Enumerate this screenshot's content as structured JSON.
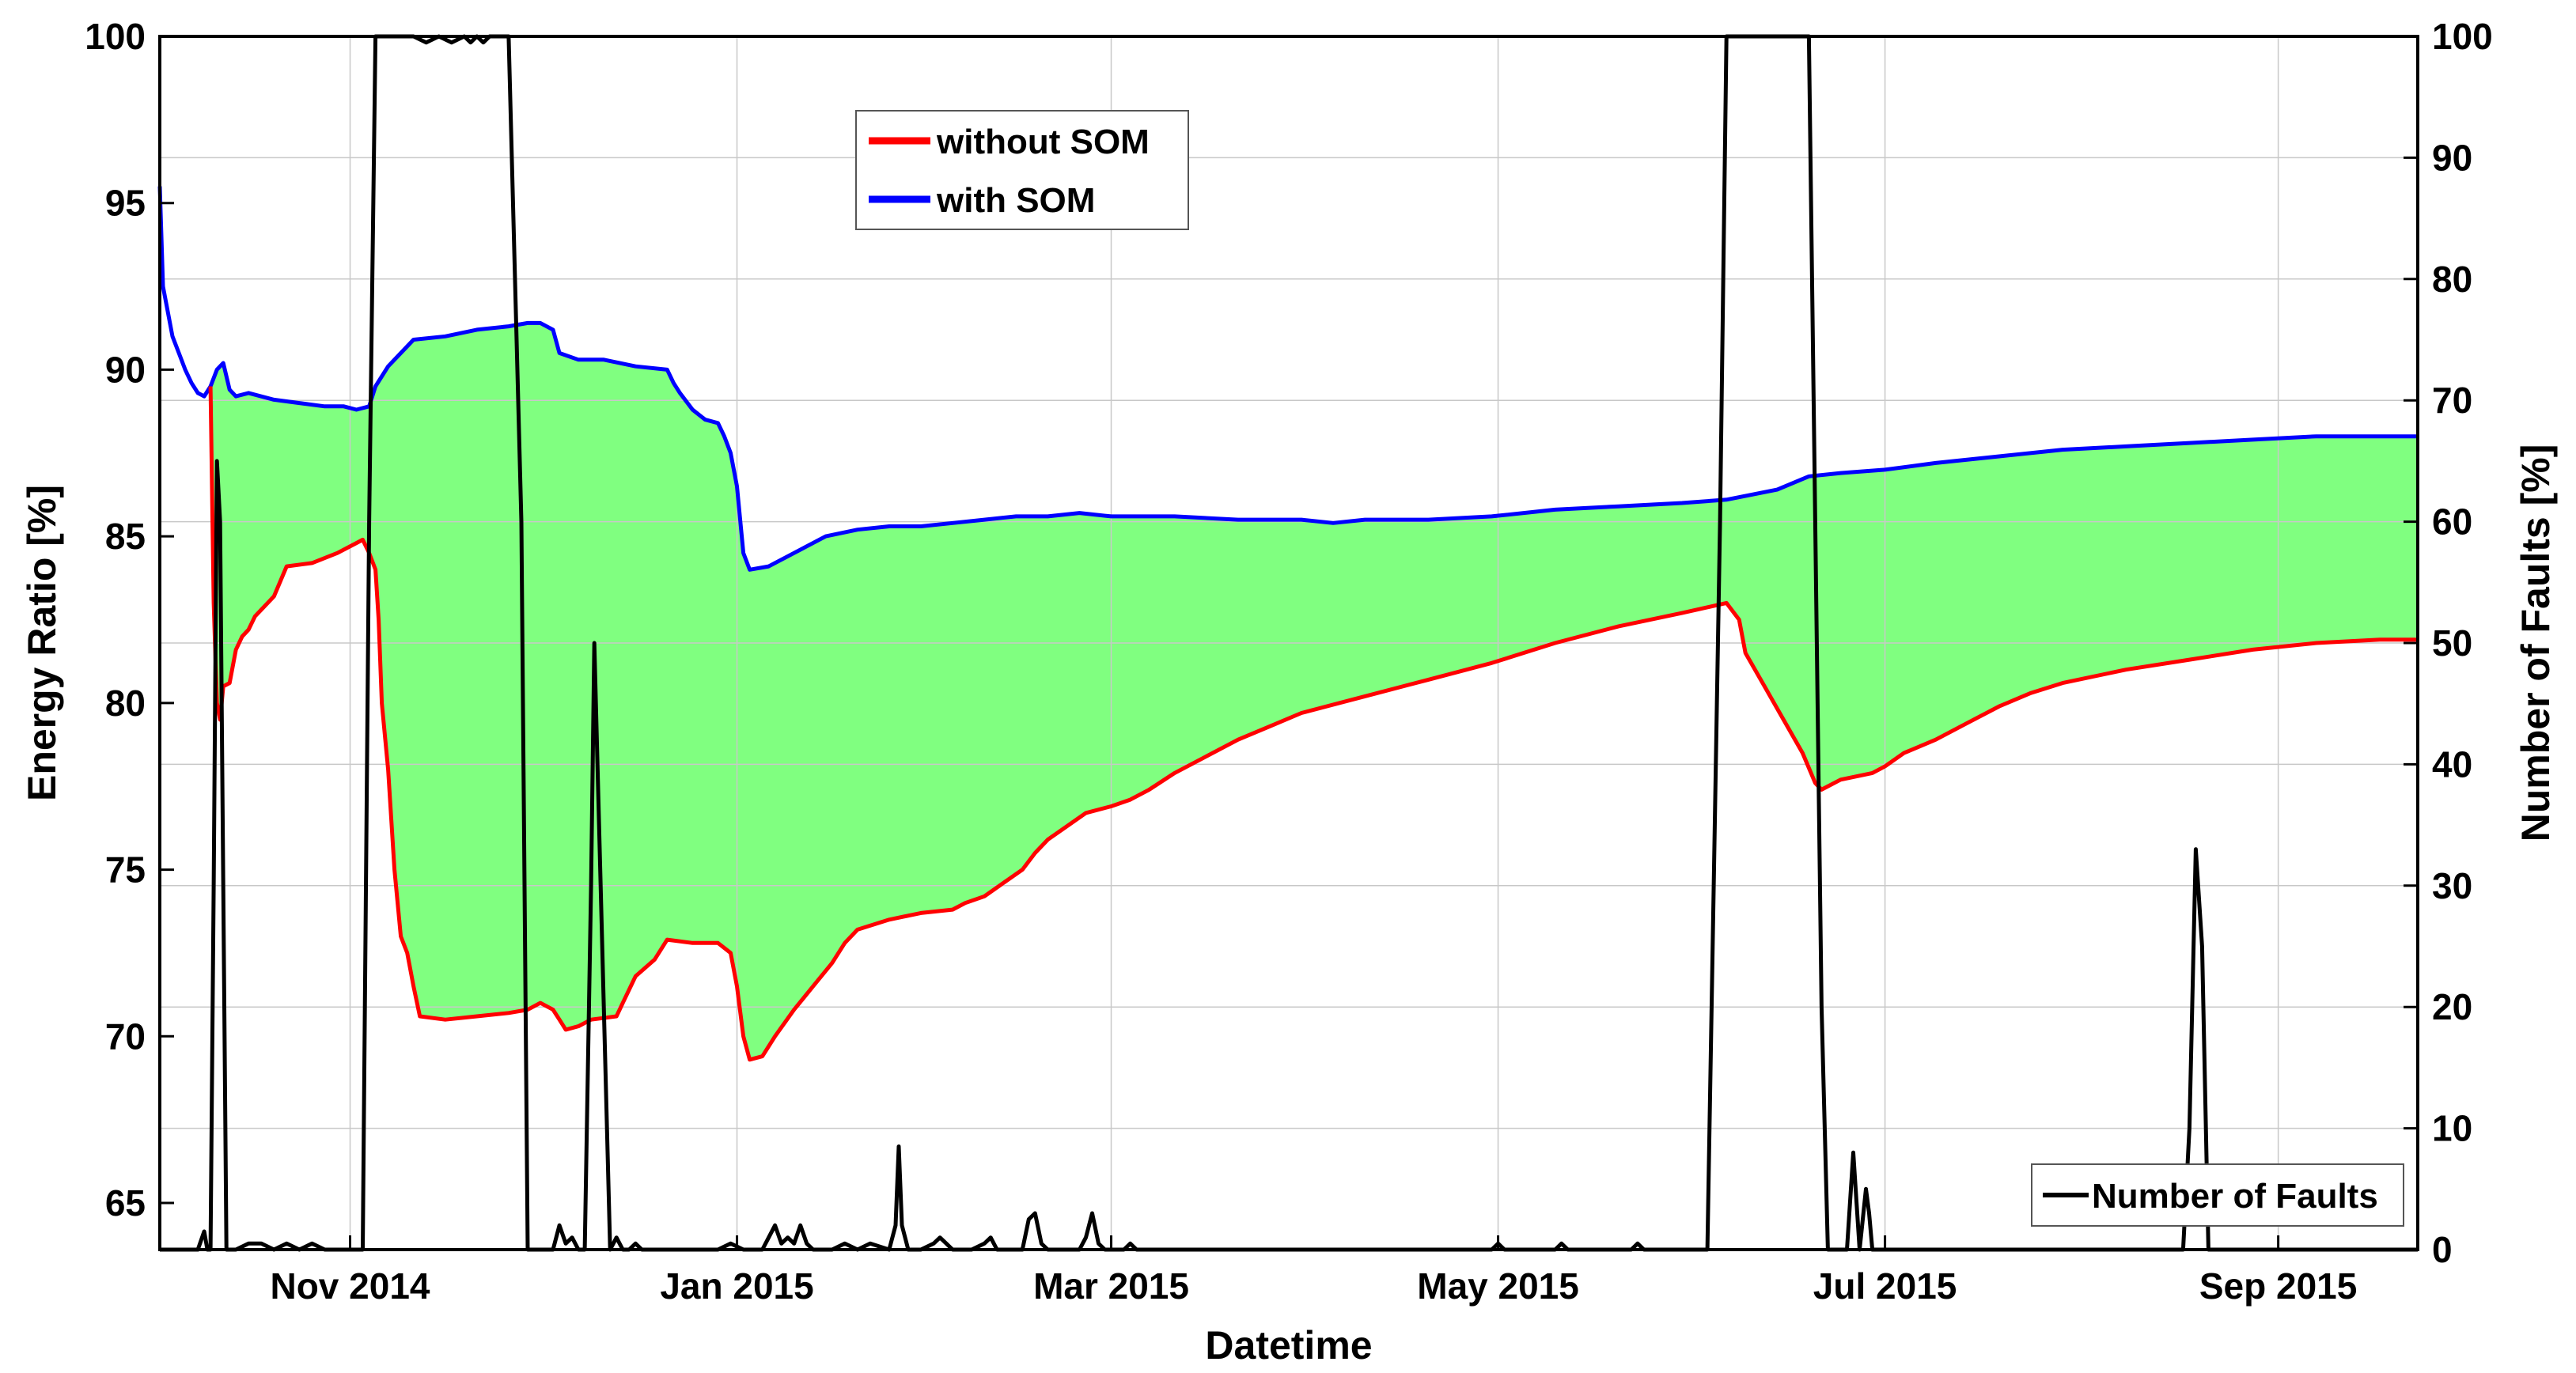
{
  "chart_data": {
    "type": "line",
    "title": "",
    "xlabel": "Datetime",
    "ylabel": "Energy Ratio [%]",
    "y2label": "Number of Faults [%]",
    "xlim_days": [
      0,
      356
    ],
    "ylim": [
      63.6,
      100
    ],
    "y2lim": [
      0,
      100
    ],
    "xticks": [
      {
        "day": 30,
        "label": "Nov 2014"
      },
      {
        "day": 91,
        "label": "Jan 2015"
      },
      {
        "day": 150,
        "label": "Mar 2015"
      },
      {
        "day": 211,
        "label": "May 2015"
      },
      {
        "day": 272,
        "label": "Jul 2015"
      },
      {
        "day": 334,
        "label": "Sep 2015"
      }
    ],
    "yticks": [
      65,
      70,
      75,
      80,
      85,
      90,
      95,
      100
    ],
    "y2ticks": [
      0,
      10,
      20,
      30,
      40,
      50,
      60,
      70,
      80,
      90,
      100
    ],
    "grid": true,
    "fill_between": {
      "between": [
        "without SOM",
        "with SOM"
      ],
      "color": "#80ff80"
    },
    "series": [
      {
        "name": "with SOM",
        "axis": "left",
        "color": "#0000ff",
        "points": [
          [
            0,
            95.5
          ],
          [
            0.5,
            92.5
          ],
          [
            1,
            92
          ],
          [
            2,
            91
          ],
          [
            3,
            90.5
          ],
          [
            4,
            90
          ],
          [
            5,
            89.6
          ],
          [
            6,
            89.3
          ],
          [
            7,
            89.2
          ],
          [
            8,
            89.5
          ],
          [
            9,
            90
          ],
          [
            10,
            90.2
          ],
          [
            11,
            89.4
          ],
          [
            12,
            89.2
          ],
          [
            14,
            89.3
          ],
          [
            18,
            89.1
          ],
          [
            22,
            89
          ],
          [
            26,
            88.9
          ],
          [
            29,
            88.9
          ],
          [
            31,
            88.8
          ],
          [
            33,
            88.9
          ],
          [
            34,
            89.5
          ],
          [
            36,
            90.1
          ],
          [
            38,
            90.5
          ],
          [
            40,
            90.9
          ],
          [
            45,
            91
          ],
          [
            50,
            91.2
          ],
          [
            55,
            91.3
          ],
          [
            58,
            91.4
          ],
          [
            60,
            91.4
          ],
          [
            62,
            91.2
          ],
          [
            63,
            90.5
          ],
          [
            66,
            90.3
          ],
          [
            70,
            90.3
          ],
          [
            75,
            90.1
          ],
          [
            80,
            90
          ],
          [
            81,
            89.6
          ],
          [
            82,
            89.3
          ],
          [
            84,
            88.8
          ],
          [
            86,
            88.5
          ],
          [
            88,
            88.4
          ],
          [
            89,
            88
          ],
          [
            90,
            87.5
          ],
          [
            91,
            86.5
          ],
          [
            92,
            84.5
          ],
          [
            93,
            84
          ],
          [
            96,
            84.1
          ],
          [
            100,
            84.5
          ],
          [
            105,
            85
          ],
          [
            110,
            85.2
          ],
          [
            115,
            85.3
          ],
          [
            120,
            85.3
          ],
          [
            125,
            85.4
          ],
          [
            130,
            85.5
          ],
          [
            135,
            85.6
          ],
          [
            140,
            85.6
          ],
          [
            145,
            85.7
          ],
          [
            150,
            85.6
          ],
          [
            160,
            85.6
          ],
          [
            170,
            85.5
          ],
          [
            180,
            85.5
          ],
          [
            185,
            85.4
          ],
          [
            190,
            85.5
          ],
          [
            200,
            85.5
          ],
          [
            210,
            85.6
          ],
          [
            220,
            85.8
          ],
          [
            230,
            85.9
          ],
          [
            240,
            86
          ],
          [
            247,
            86.1
          ],
          [
            255,
            86.4
          ],
          [
            260,
            86.8
          ],
          [
            265,
            86.9
          ],
          [
            272,
            87
          ],
          [
            280,
            87.2
          ],
          [
            290,
            87.4
          ],
          [
            300,
            87.6
          ],
          [
            310,
            87.7
          ],
          [
            320,
            87.8
          ],
          [
            330,
            87.9
          ],
          [
            340,
            88
          ],
          [
            350,
            88
          ],
          [
            356,
            88
          ]
        ]
      },
      {
        "name": "without SOM",
        "axis": "left",
        "color": "#ff0000",
        "points": [
          [
            8,
            89.5
          ],
          [
            8.5,
            83
          ],
          [
            9,
            80
          ],
          [
            9.5,
            79.5
          ],
          [
            10,
            80.5
          ],
          [
            11,
            80.6
          ],
          [
            12,
            81.6
          ],
          [
            13,
            82
          ],
          [
            14,
            82.2
          ],
          [
            15,
            82.6
          ],
          [
            16,
            82.8
          ],
          [
            18,
            83.2
          ],
          [
            20,
            84.1
          ],
          [
            24,
            84.2
          ],
          [
            28,
            84.5
          ],
          [
            31,
            84.8
          ],
          [
            32,
            84.9
          ],
          [
            33,
            84.5
          ],
          [
            34,
            84
          ],
          [
            34.5,
            82.5
          ],
          [
            35,
            80
          ],
          [
            36,
            78
          ],
          [
            37,
            75
          ],
          [
            38,
            73
          ],
          [
            39,
            72.5
          ],
          [
            40,
            71.5
          ],
          [
            41,
            70.6
          ],
          [
            45,
            70.5
          ],
          [
            50,
            70.6
          ],
          [
            55,
            70.7
          ],
          [
            58,
            70.8
          ],
          [
            60,
            71
          ],
          [
            62,
            70.8
          ],
          [
            63,
            70.5
          ],
          [
            64,
            70.2
          ],
          [
            66,
            70.3
          ],
          [
            68,
            70.5
          ],
          [
            72,
            70.6
          ],
          [
            73,
            71
          ],
          [
            75,
            71.8
          ],
          [
            78,
            72.3
          ],
          [
            80,
            72.9
          ],
          [
            84,
            72.8
          ],
          [
            88,
            72.8
          ],
          [
            90,
            72.5
          ],
          [
            91,
            71.5
          ],
          [
            92,
            70
          ],
          [
            93,
            69.3
          ],
          [
            95,
            69.4
          ],
          [
            97,
            70
          ],
          [
            100,
            70.8
          ],
          [
            103,
            71.5
          ],
          [
            106,
            72.2
          ],
          [
            108,
            72.8
          ],
          [
            110,
            73.2
          ],
          [
            115,
            73.5
          ],
          [
            120,
            73.7
          ],
          [
            125,
            73.8
          ],
          [
            127,
            74
          ],
          [
            130,
            74.2
          ],
          [
            133,
            74.6
          ],
          [
            136,
            75
          ],
          [
            138,
            75.5
          ],
          [
            140,
            75.9
          ],
          [
            143,
            76.3
          ],
          [
            146,
            76.7
          ],
          [
            150,
            76.9
          ],
          [
            153,
            77.1
          ],
          [
            156,
            77.4
          ],
          [
            160,
            77.9
          ],
          [
            165,
            78.4
          ],
          [
            170,
            78.9
          ],
          [
            175,
            79.3
          ],
          [
            180,
            79.7
          ],
          [
            190,
            80.2
          ],
          [
            200,
            80.7
          ],
          [
            210,
            81.2
          ],
          [
            220,
            81.8
          ],
          [
            230,
            82.3
          ],
          [
            240,
            82.7
          ],
          [
            247,
            83
          ],
          [
            249,
            82.5
          ],
          [
            250,
            81.5
          ],
          [
            253,
            80.5
          ],
          [
            256,
            79.5
          ],
          [
            259,
            78.5
          ],
          [
            261,
            77.6
          ],
          [
            262,
            77.4
          ],
          [
            265,
            77.7
          ],
          [
            270,
            77.9
          ],
          [
            272,
            78.1
          ],
          [
            275,
            78.5
          ],
          [
            280,
            78.9
          ],
          [
            285,
            79.4
          ],
          [
            290,
            79.9
          ],
          [
            295,
            80.3
          ],
          [
            300,
            80.6
          ],
          [
            310,
            81
          ],
          [
            320,
            81.3
          ],
          [
            330,
            81.6
          ],
          [
            340,
            81.8
          ],
          [
            350,
            81.9
          ],
          [
            356,
            81.9
          ]
        ]
      },
      {
        "name": "Number of Faults",
        "axis": "right",
        "color": "#000000",
        "points": [
          [
            0,
            0
          ],
          [
            6,
            0
          ],
          [
            7,
            1.5
          ],
          [
            7.5,
            0
          ],
          [
            8,
            0
          ],
          [
            8.5,
            30
          ],
          [
            9,
            65
          ],
          [
            9.5,
            60
          ],
          [
            10,
            30
          ],
          [
            10.5,
            0
          ],
          [
            12,
            0
          ],
          [
            14,
            0.5
          ],
          [
            16,
            0.5
          ],
          [
            18,
            0
          ],
          [
            20,
            0.5
          ],
          [
            22,
            0
          ],
          [
            24,
            0.5
          ],
          [
            26,
            0
          ],
          [
            30,
            0
          ],
          [
            31,
            0
          ],
          [
            32,
            0
          ],
          [
            33,
            60
          ],
          [
            34,
            100
          ],
          [
            36,
            100
          ],
          [
            40,
            100
          ],
          [
            42,
            99.5
          ],
          [
            44,
            100
          ],
          [
            46,
            99.5
          ],
          [
            48,
            100
          ],
          [
            49,
            99.5
          ],
          [
            50,
            100
          ],
          [
            51,
            99.5
          ],
          [
            52,
            100
          ],
          [
            55,
            100
          ],
          [
            57,
            60
          ],
          [
            58,
            0
          ],
          [
            60,
            0
          ],
          [
            62,
            0
          ],
          [
            63,
            2
          ],
          [
            64,
            0.5
          ],
          [
            65,
            1
          ],
          [
            66,
            0
          ],
          [
            67,
            0
          ],
          [
            68,
            30
          ],
          [
            68.5,
            50
          ],
          [
            69,
            40
          ],
          [
            70,
            20
          ],
          [
            71,
            0
          ],
          [
            72,
            1
          ],
          [
            73,
            0
          ],
          [
            74,
            0
          ],
          [
            75,
            0.5
          ],
          [
            76,
            0
          ],
          [
            82,
            0
          ],
          [
            84,
            0
          ],
          [
            88,
            0
          ],
          [
            90,
            0.5
          ],
          [
            92,
            0
          ],
          [
            95,
            0
          ],
          [
            96,
            1
          ],
          [
            97,
            2
          ],
          [
            98,
            0.5
          ],
          [
            99,
            1
          ],
          [
            100,
            0.5
          ],
          [
            101,
            2
          ],
          [
            102,
            0.5
          ],
          [
            103,
            0
          ],
          [
            106,
            0
          ],
          [
            108,
            0.5
          ],
          [
            110,
            0
          ],
          [
            112,
            0.5
          ],
          [
            115,
            0
          ],
          [
            116,
            2
          ],
          [
            116.5,
            8.5
          ],
          [
            117,
            2
          ],
          [
            118,
            0
          ],
          [
            120,
            0
          ],
          [
            122,
            0.5
          ],
          [
            123,
            1
          ],
          [
            124,
            0.5
          ],
          [
            125,
            0
          ],
          [
            128,
            0
          ],
          [
            130,
            0.5
          ],
          [
            131,
            1
          ],
          [
            132,
            0
          ],
          [
            136,
            0
          ],
          [
            137,
            2.5
          ],
          [
            138,
            3
          ],
          [
            139,
            0.5
          ],
          [
            140,
            0
          ],
          [
            145,
            0
          ],
          [
            146,
            1
          ],
          [
            147,
            3
          ],
          [
            148,
            0.5
          ],
          [
            149,
            0
          ],
          [
            150,
            0
          ],
          [
            152,
            0
          ],
          [
            153,
            0.5
          ],
          [
            154,
            0
          ],
          [
            210,
            0
          ],
          [
            211,
            0.5
          ],
          [
            212,
            0
          ],
          [
            220,
            0
          ],
          [
            221,
            0.5
          ],
          [
            222,
            0
          ],
          [
            232,
            0
          ],
          [
            233,
            0.5
          ],
          [
            234,
            0
          ],
          [
            244,
            0
          ],
          [
            246,
            60
          ],
          [
            247,
            100
          ],
          [
            248,
            100
          ],
          [
            258,
            100
          ],
          [
            260,
            100
          ],
          [
            261,
            60
          ],
          [
            262,
            20
          ],
          [
            263,
            0
          ],
          [
            266,
            0
          ],
          [
            267,
            8
          ],
          [
            268,
            0
          ],
          [
            269,
            5
          ],
          [
            269.5,
            3
          ],
          [
            270,
            0
          ],
          [
            280,
            0
          ],
          [
            319,
            0
          ],
          [
            320,
            10
          ],
          [
            321,
            33
          ],
          [
            322,
            25
          ],
          [
            323,
            0
          ],
          [
            356,
            0
          ]
        ]
      }
    ],
    "legends": [
      {
        "entries": [
          "without SOM",
          "with SOM"
        ],
        "location": "top-center"
      },
      {
        "entries": [
          "Number of Faults"
        ],
        "location": "bottom-right"
      }
    ]
  }
}
